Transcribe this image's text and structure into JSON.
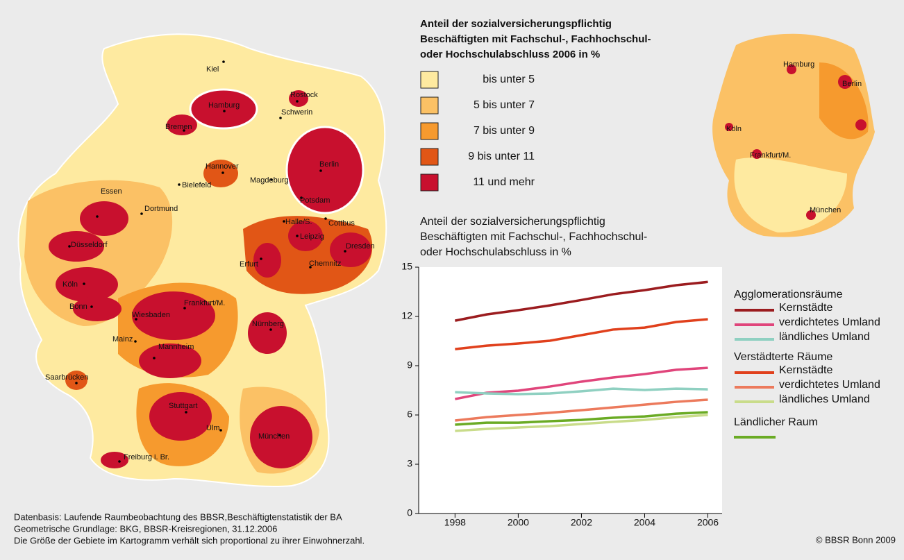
{
  "map": {
    "legend_title": [
      "Anteil der sozialversicherungspflichtig",
      "Beschäftigten mit Fachschul-, Fachhochschul-",
      "oder Hochschulabschluss 2006 in %"
    ],
    "legend": [
      {
        "label": "bis unter 5",
        "color": "#feeaa0"
      },
      {
        "label": "5 bis unter 7",
        "color": "#fbc165"
      },
      {
        "label": "7 bis unter 9",
        "color": "#f69a2e"
      },
      {
        "label": "9 bis unter 11",
        "color": "#e15616"
      },
      {
        "label": "11 und mehr",
        "color": "#c8102e"
      }
    ],
    "cities": [
      "Kiel",
      "Rostock",
      "Hamburg",
      "Schwerin",
      "Bremen",
      "Berlin",
      "Hannover",
      "Magdeburg",
      "Bielefeld",
      "Potsdam",
      "Essen",
      "Dortmund",
      "Halle/S.",
      "Cottbus",
      "Düsseldorf",
      "Leipzig",
      "Dresden",
      "Erfurt",
      "Chemnitz",
      "Köln",
      "Bonn",
      "Frankfurt/M.",
      "Wiesbaden",
      "Mainz",
      "Nürnberg",
      "Mannheim",
      "Saarbrücken",
      "Stuttgart",
      "Ulm",
      "München",
      "Freiburg i. Br."
    ],
    "inset_cities": [
      "Hamburg",
      "Berlin",
      "Köln",
      "Frankfurt/M.",
      "München"
    ]
  },
  "chart_data": {
    "type": "line",
    "title": [
      "Anteil der sozialversicherungspflichtig",
      "Beschäftigten mit Fachschul-, Fachhochschul-",
      "oder Hochschulabschluss in %"
    ],
    "x": [
      1998,
      1999,
      2000,
      2001,
      2002,
      2003,
      2004,
      2005,
      2006
    ],
    "xlim": [
      1996.85,
      2006.45
    ],
    "xticks": [
      1998,
      2000,
      2002,
      2004,
      2006
    ],
    "ylim": [
      0,
      15
    ],
    "yticks": [
      0,
      3,
      6,
      9,
      12,
      15
    ],
    "grid": false,
    "series": [
      {
        "group": "Agglomerationsräume",
        "name": "Kernstädte",
        "color": "#9b1c1f",
        "values": [
          11.74,
          12.12,
          12.38,
          12.67,
          13.0,
          13.35,
          13.6,
          13.9,
          14.1
        ]
      },
      {
        "group": "Agglomerationsräume",
        "name": "verdichtetes Umland",
        "color": "#e0457b",
        "values": [
          6.97,
          7.35,
          7.48,
          7.73,
          8.03,
          8.28,
          8.49,
          8.75,
          8.87
        ]
      },
      {
        "group": "Agglomerationsräume",
        "name": "ländliches Umland",
        "color": "#8fd0c1",
        "values": [
          7.39,
          7.31,
          7.27,
          7.31,
          7.44,
          7.6,
          7.52,
          7.6,
          7.56
        ]
      },
      {
        "group": "Verstädterte Räume",
        "name": "Kernstädte",
        "color": "#e0401c",
        "values": [
          10.01,
          10.22,
          10.35,
          10.52,
          10.86,
          11.2,
          11.32,
          11.66,
          11.83
        ]
      },
      {
        "group": "Verstädterte Räume",
        "name": "verdichtetes Umland",
        "color": "#ec7a5c",
        "values": [
          5.66,
          5.87,
          6.0,
          6.13,
          6.29,
          6.46,
          6.63,
          6.8,
          6.93
        ]
      },
      {
        "group": "Verstädterte Räume",
        "name": "ländliches Umland",
        "color": "#c9dc8a",
        "values": [
          5.03,
          5.15,
          5.24,
          5.32,
          5.45,
          5.58,
          5.7,
          5.87,
          6.0
        ]
      },
      {
        "name": "Ländlicher Raum",
        "color": "#6aab24",
        "values": [
          5.41,
          5.53,
          5.53,
          5.62,
          5.7,
          5.83,
          5.91,
          6.08,
          6.17
        ]
      }
    ]
  },
  "footer": {
    "source": [
      "Datenbasis: Laufende Raumbeobachtung des BBSR,Beschäftigtenstatistik der BA",
      "Geometrische Grundlage: BKG, BBSR-Kreisregionen, 31.12.2006",
      "Die Größe der Gebiete im Kartogramm verhält sich proportional zu ihrer Einwohnerzahl."
    ],
    "copyright": "© BBSR Bonn 2009"
  }
}
